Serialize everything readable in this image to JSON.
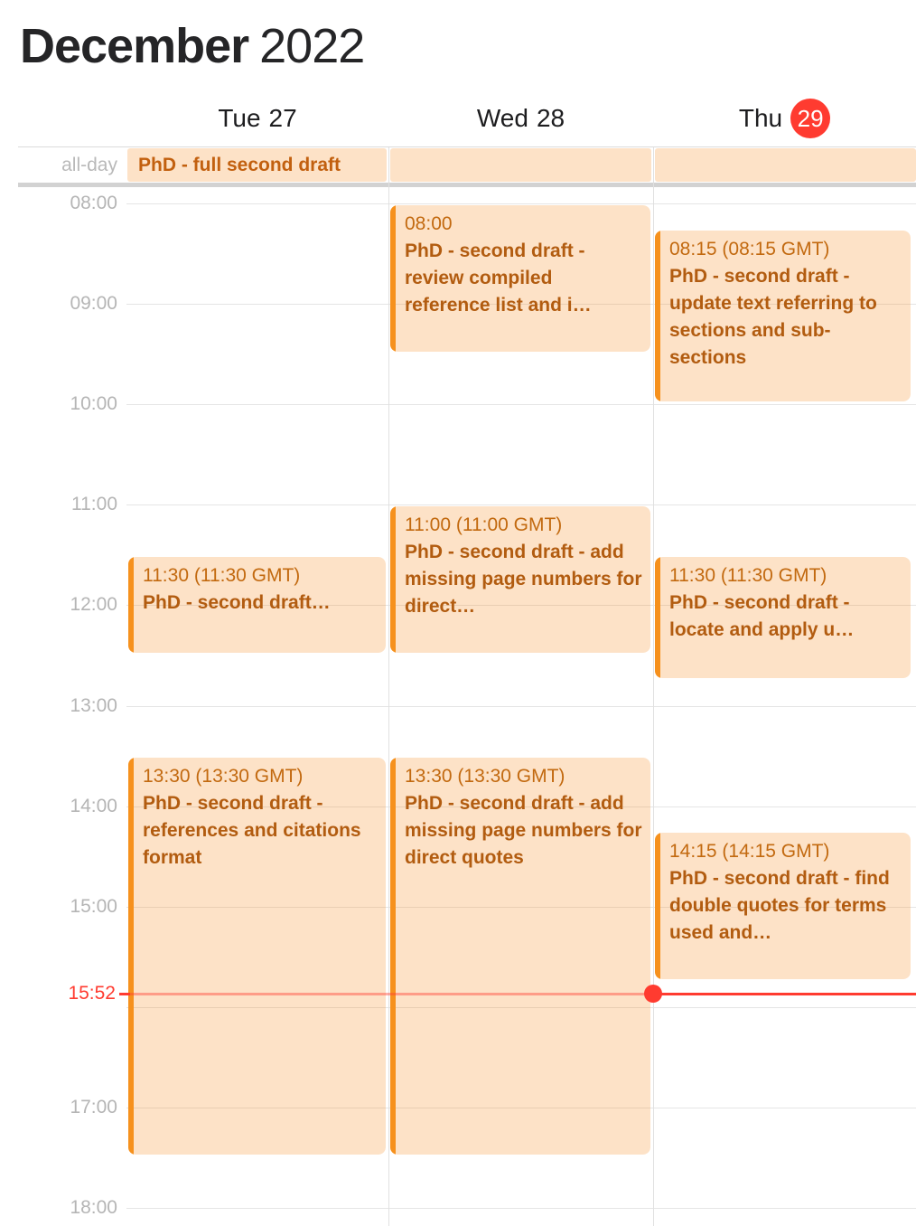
{
  "title": {
    "month": "December",
    "year": "2022"
  },
  "days": [
    {
      "name": "Tue",
      "date": "27",
      "today": false
    },
    {
      "name": "Wed",
      "date": "28",
      "today": false
    },
    {
      "name": "Thu",
      "date": "29",
      "today": true
    }
  ],
  "all_day": {
    "row_label": "all-day",
    "event_title": "PhD - full second draft"
  },
  "time_axis": {
    "labels": [
      {
        "hour": 8,
        "text": "08:00"
      },
      {
        "hour": 9,
        "text": "09:00"
      },
      {
        "hour": 10,
        "text": "10:00"
      },
      {
        "hour": 11,
        "text": "11:00"
      },
      {
        "hour": 12,
        "text": "12:00"
      },
      {
        "hour": 13,
        "text": "13:00"
      },
      {
        "hour": 14,
        "text": "14:00"
      },
      {
        "hour": 15,
        "text": "15:00"
      },
      {
        "hour": 17,
        "text": "17:00"
      },
      {
        "hour": 18,
        "text": "18:00"
      }
    ],
    "first_hour": 8,
    "last_hour": 18
  },
  "events": [
    {
      "day_index": 0,
      "start_hour": 11.5,
      "end_hour": 12.5,
      "time": "11:30",
      "timezone_note": "(11:30 GMT)",
      "title": "PhD - second draft…"
    },
    {
      "day_index": 0,
      "start_hour": 13.5,
      "end_hour": 17.5,
      "time": "13:30",
      "timezone_note": "(13:30 GMT)",
      "title": "PhD - second draft - references and citations format"
    },
    {
      "day_index": 1,
      "start_hour": 8.0,
      "end_hour": 9.5,
      "time": "08:00",
      "timezone_note": "",
      "title": "PhD - second draft - review compiled reference list and i…"
    },
    {
      "day_index": 1,
      "start_hour": 11.0,
      "end_hour": 12.5,
      "time": "11:00",
      "timezone_note": "(11:00 GMT)",
      "title": "PhD - second draft - add missing page numbers for direct…"
    },
    {
      "day_index": 1,
      "start_hour": 13.5,
      "end_hour": 17.5,
      "time": "13:30",
      "timezone_note": "(13:30 GMT)",
      "title": "PhD - second draft - add missing page numbers for direct quotes"
    },
    {
      "day_index": 2,
      "start_hour": 8.25,
      "end_hour": 10.0,
      "time": "08:15",
      "timezone_note": "(08:15 GMT)",
      "title": "PhD - second draft - update text referring to sections and sub-sections"
    },
    {
      "day_index": 2,
      "start_hour": 11.5,
      "end_hour": 12.75,
      "time": "11:30",
      "timezone_note": "(11:30 GMT)",
      "title": "PhD - second draft - locate and apply u…"
    },
    {
      "day_index": 2,
      "start_hour": 14.25,
      "end_hour": 15.75,
      "time": "14:15",
      "timezone_note": "(14:15 GMT)",
      "title": "PhD - second draft - find double quotes for terms used and…"
    }
  ],
  "current_time": {
    "label": "15:52",
    "hour": 15,
    "minute": 52,
    "day_index": 2
  },
  "colors": {
    "event_fill": "rgba(247,140,30,0.25)",
    "event_strip": "#f6911d",
    "event_time_text": "#c2690f",
    "event_title_text": "#b25c10",
    "allday_text": "#c2600f",
    "today_badge": "#ff3b30",
    "badge_text": "#ffffff",
    "now_red": "#ff3b30",
    "now_red_faded": "rgba(255,59,48,0.42)",
    "header_text": "#252527",
    "day_text": "#1d1d1f",
    "axis_text": "#b5b5b5"
  }
}
